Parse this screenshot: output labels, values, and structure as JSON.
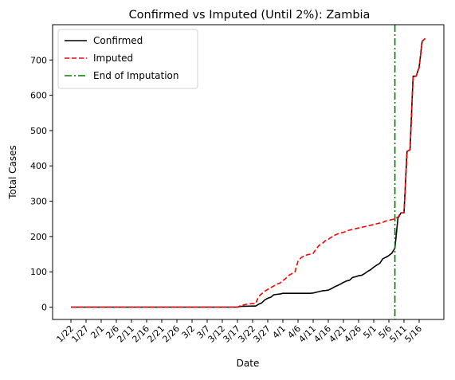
{
  "chart_data": {
    "type": "line",
    "title": "Confirmed vs Imputed (Until 2%): Zambia",
    "xlabel": "Date",
    "ylabel": "Total Cases",
    "ylim": [
      -35,
      800
    ],
    "yticks": [
      0,
      100,
      200,
      300,
      400,
      500,
      600,
      700
    ],
    "x_start": "1/22",
    "x_tick_labels": [
      "1/22",
      "1/27",
      "2/1",
      "2/6",
      "2/11",
      "2/16",
      "2/21",
      "2/26",
      "3/2",
      "3/7",
      "3/12",
      "3/17",
      "3/22",
      "3/27",
      "4/1",
      "4/6",
      "4/11",
      "4/16",
      "4/21",
      "4/26",
      "5/1",
      "5/6",
      "5/11",
      "5/16"
    ],
    "legend_position": "upper-left",
    "end_of_imputation": {
      "name": "End of Imputation",
      "date": "5/8",
      "color": "#008000"
    },
    "series": [
      {
        "name": "Confirmed",
        "color": "#000000",
        "style": "solid",
        "points": [
          [
            "1/22",
            0
          ],
          [
            "3/17",
            0
          ],
          [
            "3/18",
            2
          ],
          [
            "3/22",
            3
          ],
          [
            "3/23",
            3
          ],
          [
            "3/24",
            8
          ],
          [
            "3/25",
            12
          ],
          [
            "3/26",
            20
          ],
          [
            "3/27",
            25
          ],
          [
            "3/28",
            28
          ],
          [
            "3/29",
            35
          ],
          [
            "3/30",
            36
          ],
          [
            "3/31",
            37
          ],
          [
            "4/1",
            39
          ],
          [
            "4/2",
            39
          ],
          [
            "4/10",
            39
          ],
          [
            "4/11",
            40
          ],
          [
            "4/12",
            42
          ],
          [
            "4/13",
            44
          ],
          [
            "4/14",
            46
          ],
          [
            "4/15",
            47
          ],
          [
            "4/16",
            48
          ],
          [
            "4/17",
            52
          ],
          [
            "4/18",
            57
          ],
          [
            "4/19",
            61
          ],
          [
            "4/20",
            65
          ],
          [
            "4/21",
            70
          ],
          [
            "4/22",
            74
          ],
          [
            "4/23",
            76
          ],
          [
            "4/24",
            84
          ],
          [
            "4/25",
            86
          ],
          [
            "4/26",
            89
          ],
          [
            "4/27",
            90
          ],
          [
            "4/28",
            95
          ],
          [
            "4/29",
            101
          ],
          [
            "4/30",
            106
          ],
          [
            "5/1",
            113
          ],
          [
            "5/2",
            119
          ],
          [
            "5/3",
            124
          ],
          [
            "5/4",
            137
          ],
          [
            "5/5",
            141
          ],
          [
            "5/6",
            146
          ],
          [
            "5/7",
            153
          ],
          [
            "5/8",
            167
          ],
          [
            "5/9",
            252
          ],
          [
            "5/10",
            267
          ],
          [
            "5/11",
            267
          ],
          [
            "5/12",
            441
          ],
          [
            "5/13",
            446
          ],
          [
            "5/14",
            654
          ],
          [
            "5/15",
            654
          ],
          [
            "5/16",
            679
          ],
          [
            "5/17",
            753
          ],
          [
            "5/18",
            761
          ]
        ]
      },
      {
        "name": "Imputed",
        "color": "#ff0000",
        "style": "dashed",
        "points": [
          [
            "1/22",
            0
          ],
          [
            "3/17",
            0
          ],
          [
            "3/18",
            4
          ],
          [
            "3/19",
            6
          ],
          [
            "3/20",
            8
          ],
          [
            "3/21",
            9
          ],
          [
            "3/22",
            10
          ],
          [
            "3/23",
            10
          ],
          [
            "3/24",
            30
          ],
          [
            "3/25",
            38
          ],
          [
            "3/26",
            45
          ],
          [
            "3/27",
            50
          ],
          [
            "3/28",
            55
          ],
          [
            "3/29",
            60
          ],
          [
            "3/30",
            65
          ],
          [
            "3/31",
            68
          ],
          [
            "4/1",
            75
          ],
          [
            "4/2",
            82
          ],
          [
            "4/3",
            90
          ],
          [
            "4/4",
            95
          ],
          [
            "4/5",
            100
          ],
          [
            "4/6",
            130
          ],
          [
            "4/7",
            140
          ],
          [
            "4/8",
            145
          ],
          [
            "4/9",
            148
          ],
          [
            "4/10",
            150
          ],
          [
            "4/11",
            152
          ],
          [
            "4/12",
            165
          ],
          [
            "4/13",
            175
          ],
          [
            "4/14",
            180
          ],
          [
            "4/15",
            188
          ],
          [
            "4/16",
            192
          ],
          [
            "4/17",
            198
          ],
          [
            "4/18",
            203
          ],
          [
            "4/19",
            207
          ],
          [
            "4/20",
            210
          ],
          [
            "4/21",
            212
          ],
          [
            "4/22",
            215
          ],
          [
            "4/23",
            218
          ],
          [
            "4/24",
            220
          ],
          [
            "4/25",
            222
          ],
          [
            "4/26",
            224
          ],
          [
            "4/27",
            226
          ],
          [
            "4/28",
            228
          ],
          [
            "4/29",
            230
          ],
          [
            "4/30",
            232
          ],
          [
            "5/1",
            234
          ],
          [
            "5/2",
            236
          ],
          [
            "5/3",
            238
          ],
          [
            "5/4",
            240
          ],
          [
            "5/5",
            244
          ],
          [
            "5/6",
            246
          ],
          [
            "5/7",
            248
          ],
          [
            "5/8",
            250
          ],
          [
            "5/9",
            255
          ],
          [
            "5/10",
            267
          ],
          [
            "5/11",
            267
          ],
          [
            "5/12",
            441
          ],
          [
            "5/13",
            446
          ],
          [
            "5/14",
            654
          ],
          [
            "5/15",
            654
          ],
          [
            "5/16",
            679
          ],
          [
            "5/17",
            753
          ],
          [
            "5/18",
            761
          ]
        ]
      }
    ]
  }
}
